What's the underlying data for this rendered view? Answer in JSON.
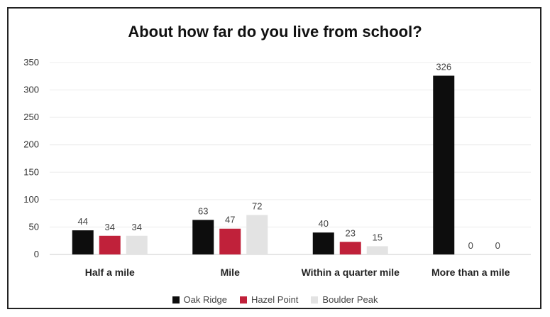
{
  "chart_data": {
    "type": "bar",
    "title": "About how far do you live from school?",
    "categories": [
      "Half a mile",
      "Mile",
      "Within a quarter mile",
      "More than a mile"
    ],
    "series": [
      {
        "name": "Oak Ridge",
        "color": "#0d0d0d",
        "values": [
          44,
          63,
          40,
          326
        ]
      },
      {
        "name": "Hazel Point",
        "color": "#c0213a",
        "values": [
          34,
          47,
          23,
          0
        ]
      },
      {
        "name": "Boulder Peak",
        "color": "#e3e3e3",
        "values": [
          34,
          72,
          15,
          0
        ]
      }
    ],
    "ylim": [
      0,
      350
    ],
    "yticks": [
      "0",
      "50",
      "100",
      "150",
      "200",
      "250",
      "300",
      "350"
    ],
    "grid": true,
    "legend_position": "bottom"
  }
}
